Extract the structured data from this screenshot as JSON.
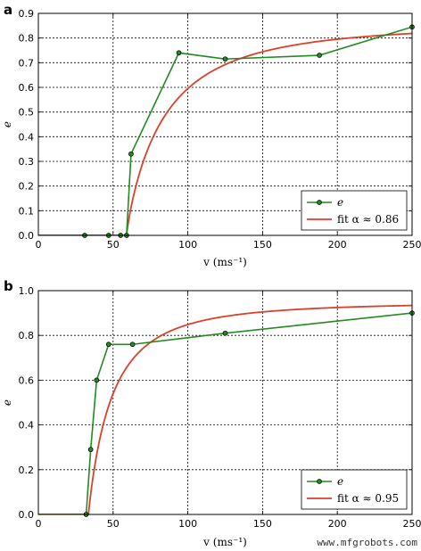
{
  "colors": {
    "data": "#228b22",
    "fit": "#d9412b",
    "marker_edge": "#000000"
  },
  "watermark": "www.mfgrobots.com",
  "chart_data": [
    {
      "panel_label": "a",
      "type": "line",
      "xlabel": "v (ms⁻¹)",
      "ylabel": "e",
      "xlim": [
        0,
        250
      ],
      "ylim": [
        0,
        0.9
      ],
      "xticks": [
        "0",
        "50",
        "100",
        "150",
        "200",
        "250"
      ],
      "yticks": [
        "0.0",
        "0.1",
        "0.2",
        "0.3",
        "0.4",
        "0.5",
        "0.6",
        "0.7",
        "0.8",
        "0.9"
      ],
      "grid": true,
      "legend_position": "lower right",
      "series": [
        {
          "name": "e",
          "x": [
            31,
            47,
            55,
            59,
            62,
            94,
            125,
            188,
            250
          ],
          "y": [
            0.0,
            0.0,
            0.0,
            0.0,
            0.33,
            0.74,
            0.715,
            0.73,
            0.845
          ]
        },
        {
          "name": "fit α ≈ 0.86",
          "fit": {
            "v_threshold": 59,
            "scale": 0.86,
            "alpha": 0.86
          }
        }
      ]
    },
    {
      "panel_label": "b",
      "type": "line",
      "xlabel": "v (ms⁻¹)",
      "ylabel": "e",
      "xlim": [
        0,
        250
      ],
      "ylim": [
        0,
        1.0
      ],
      "xticks": [
        "0",
        "50",
        "100",
        "150",
        "200",
        "250"
      ],
      "yticks": [
        "0.0",
        "0.2",
        "0.4",
        "0.6",
        "0.8",
        "1.0"
      ],
      "grid": true,
      "legend_position": "lower right",
      "series": [
        {
          "name": "e",
          "x": [
            32,
            35,
            39,
            47,
            63,
            125,
            250
          ],
          "y": [
            0.0,
            0.29,
            0.6,
            0.76,
            0.76,
            0.81,
            0.9
          ]
        },
        {
          "name": "fit α ≈ 0.95",
          "fit": {
            "v_threshold": 33.5,
            "scale": 0.95,
            "alpha": 0.95
          }
        }
      ]
    }
  ]
}
